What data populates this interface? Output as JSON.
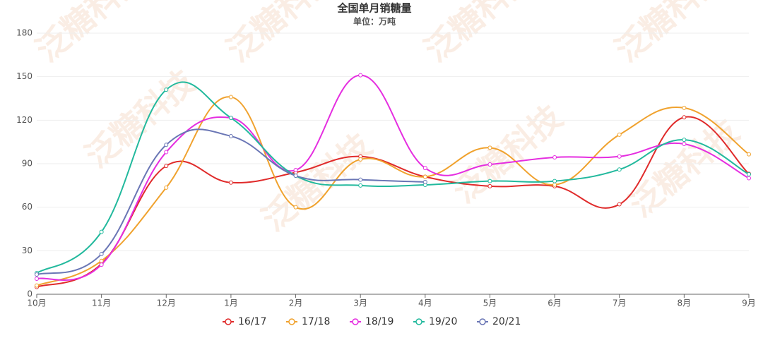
{
  "chart_data": {
    "type": "line",
    "title": "全国单月销糖量",
    "subtitle": "单位：万吨",
    "watermark": "泛糖科技",
    "categories": [
      "10月",
      "11月",
      "12月",
      "1月",
      "2月",
      "3月",
      "4月",
      "5月",
      "6月",
      "7月",
      "8月",
      "9月"
    ],
    "ylim": [
      0,
      180
    ],
    "yticks": [
      0,
      30,
      60,
      90,
      120,
      150,
      180
    ],
    "grid": true,
    "smooth": true,
    "legend": "bottom",
    "series": [
      {
        "name": "16/17",
        "color": "#e02b2b",
        "values": [
          5,
          21,
          88.5,
          77,
          84,
          95,
          81,
          74.5,
          74.5,
          62,
          122,
          83
        ]
      },
      {
        "name": "17/18",
        "color": "#f0a22e",
        "values": [
          6,
          23,
          73.5,
          136,
          60,
          93,
          81,
          101,
          75.5,
          110,
          128.5,
          96.5
        ]
      },
      {
        "name": "18/19",
        "color": "#e52ee0",
        "values": [
          10.7,
          20.4,
          98,
          121.6,
          85.6,
          151,
          87,
          89.5,
          94.4,
          95,
          103.6,
          80
        ]
      },
      {
        "name": "19/20",
        "color": "#22b99d",
        "values": [
          14.6,
          43,
          141,
          121.6,
          81.7,
          75,
          75.4,
          78,
          78,
          86,
          106.5,
          82.7
        ]
      },
      {
        "name": "20/21",
        "color": "#6a76b5",
        "values": [
          13.6,
          27.7,
          103,
          109,
          81.7,
          79,
          77.4,
          null,
          null,
          null,
          null,
          null
        ]
      }
    ]
  }
}
